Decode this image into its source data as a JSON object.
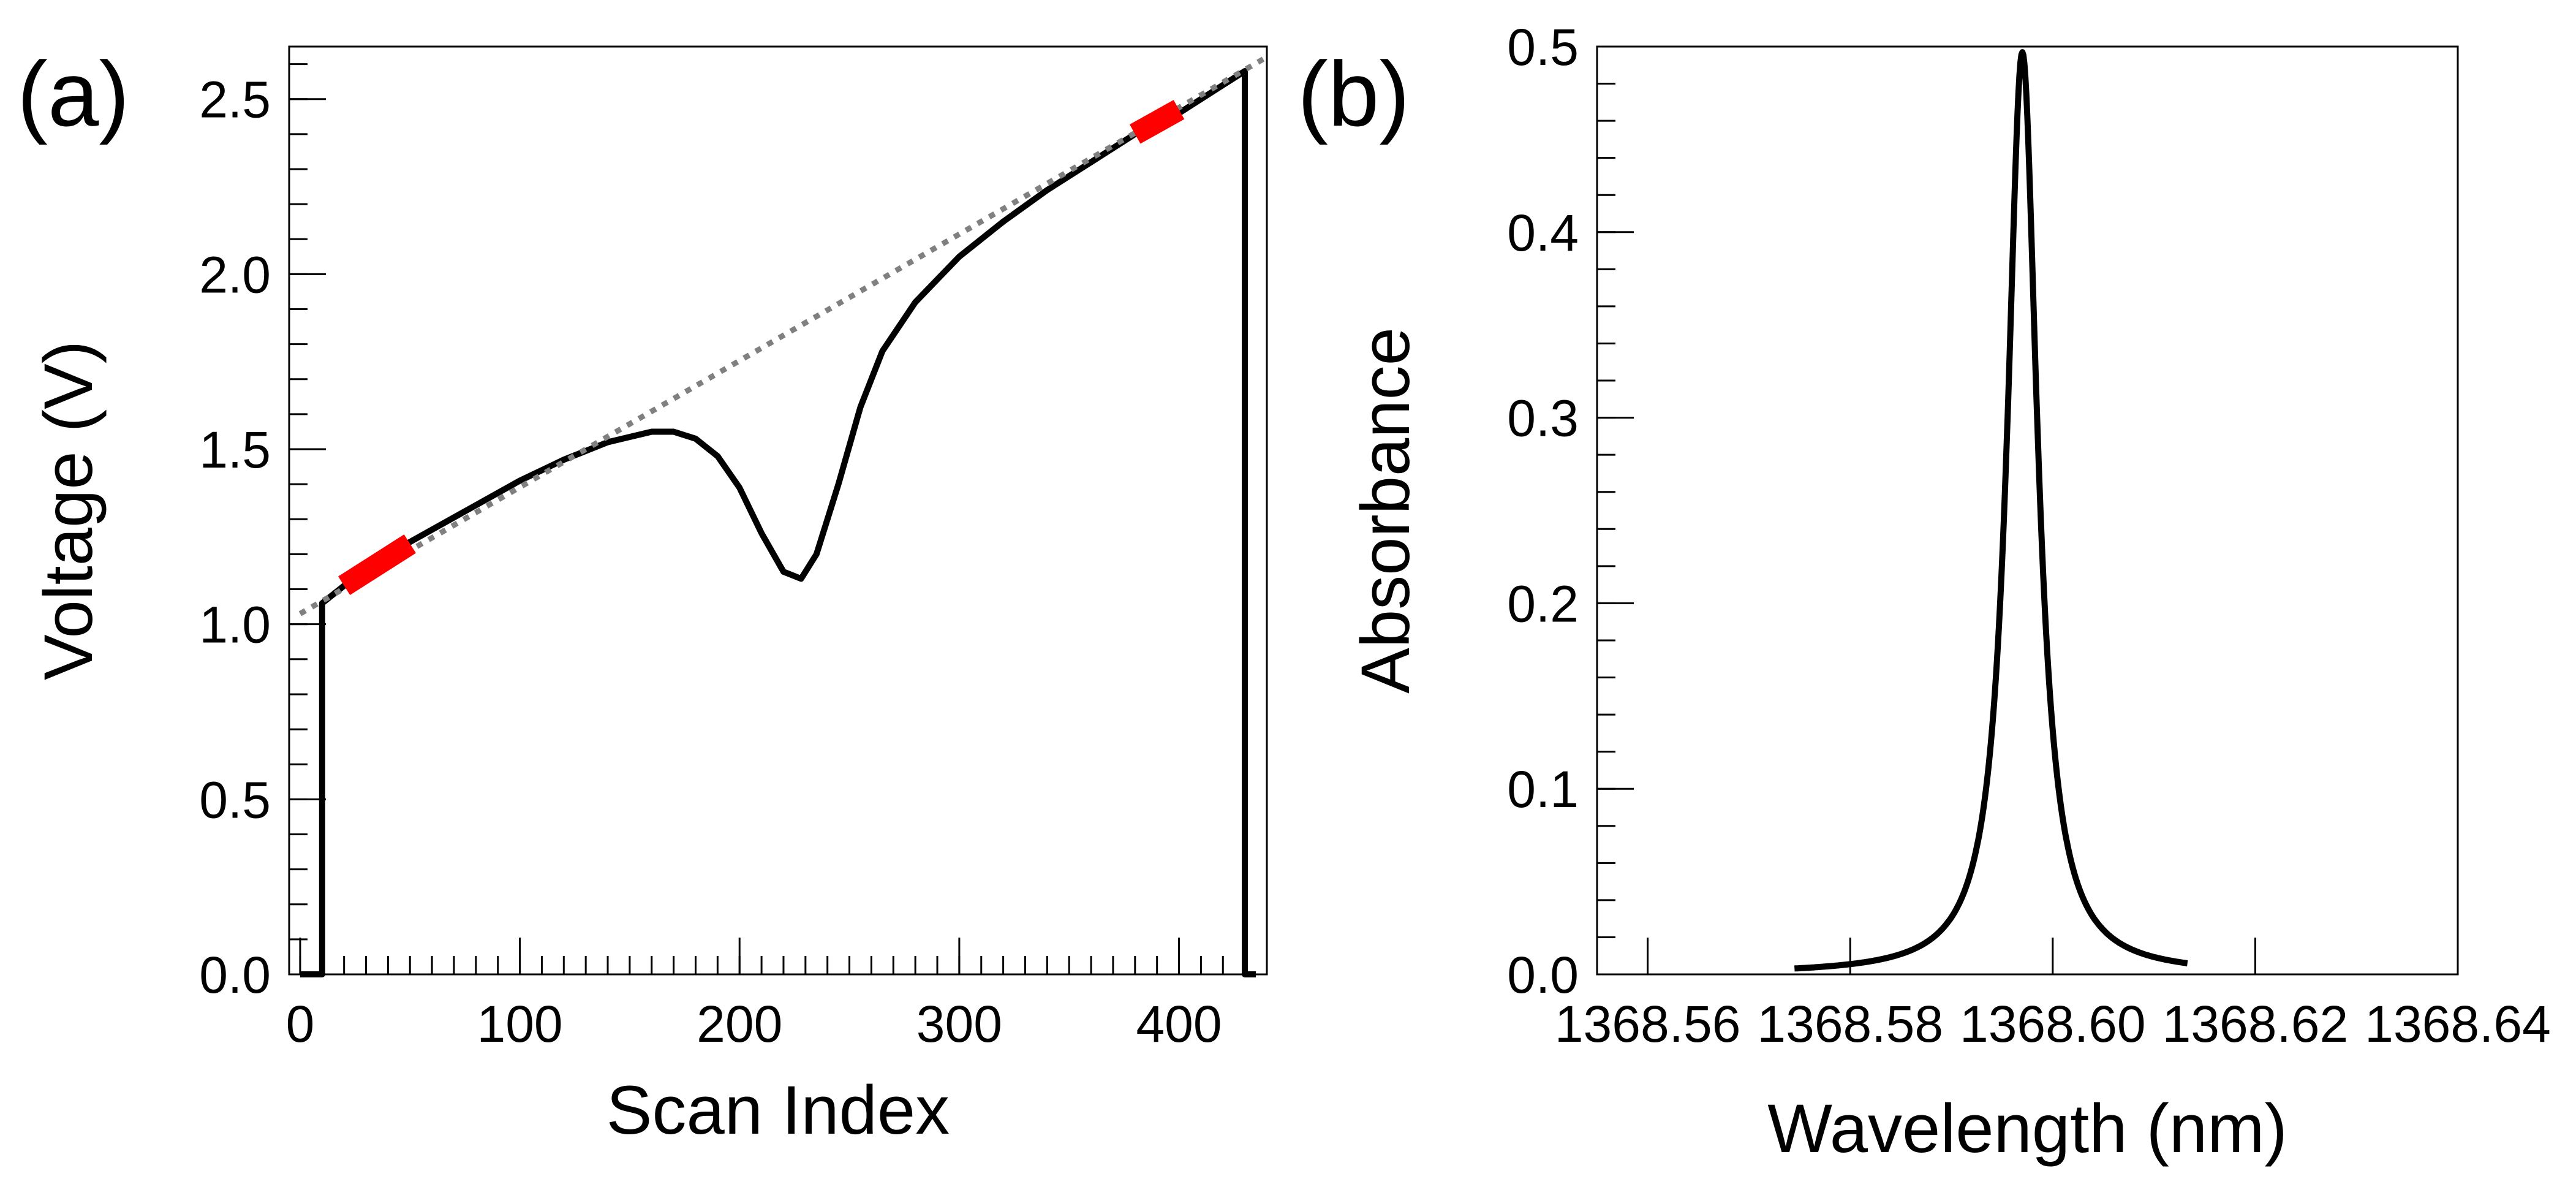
{
  "chart_data": [
    {
      "panel_label": "(a)",
      "type": "line",
      "xlabel": "Scan Index",
      "ylabel": "Voltage (V)",
      "xlim": [
        -5,
        440
      ],
      "ylim": [
        0,
        2.65
      ],
      "xticks": [
        0,
        100,
        200,
        300,
        400
      ],
      "xtick_labels": [
        "0",
        "100",
        "200",
        "300",
        "400"
      ],
      "yticks": [
        0.0,
        0.5,
        1.0,
        1.5,
        2.0,
        2.5
      ],
      "ytick_labels": [
        "0.0",
        "0.5",
        "1.0",
        "1.5",
        "2.0",
        "2.5"
      ],
      "grid": false,
      "series": [
        {
          "style": "solid",
          "color": "#000000",
          "x": [
            0,
            10,
            10,
            20,
            40,
            60,
            80,
            100,
            120,
            140,
            160,
            170,
            180,
            190,
            200,
            210,
            220,
            228,
            235,
            245,
            255,
            265,
            280,
            300,
            320,
            340,
            360,
            380,
            400,
            420,
            430,
            430,
            435
          ],
          "y": [
            0.0,
            0.0,
            1.06,
            1.11,
            1.2,
            1.27,
            1.34,
            1.41,
            1.47,
            1.52,
            1.55,
            1.55,
            1.53,
            1.48,
            1.39,
            1.26,
            1.15,
            1.13,
            1.2,
            1.4,
            1.62,
            1.78,
            1.92,
            2.05,
            2.15,
            2.24,
            2.32,
            2.4,
            2.46,
            2.54,
            2.58,
            0.0,
            0.0
          ]
        },
        {
          "style": "dotted",
          "color": "#808080",
          "x": [
            0,
            440
          ],
          "y": [
            1.03,
            2.62
          ]
        },
        {
          "style": "thick",
          "color": "#ff0000",
          "x": [
            20,
            50
          ],
          "y": [
            1.11,
            1.23
          ]
        },
        {
          "style": "thick",
          "color": "#ff0000",
          "x": [
            380,
            400
          ],
          "y": [
            2.4,
            2.47
          ]
        }
      ]
    },
    {
      "panel_label": "(b)",
      "type": "line",
      "xlabel": "Wavelength (nm)",
      "ylabel": "Absorbance",
      "xlim": [
        1368.555,
        1368.64
      ],
      "ylim": [
        0,
        0.5
      ],
      "xticks": [
        1368.56,
        1368.58,
        1368.6,
        1368.62,
        1368.64
      ],
      "xtick_labels": [
        "1368.56",
        "1368.58",
        "1368.60",
        "1368.62",
        "1368.64"
      ],
      "yticks": [
        0.0,
        0.1,
        0.2,
        0.3,
        0.4,
        0.5
      ],
      "ytick_labels": [
        "0.0",
        "0.1",
        "0.2",
        "0.3",
        "0.4",
        "0.5"
      ],
      "grid": false,
      "series": [
        {
          "style": "solid",
          "color": "#000000",
          "peak_center": 1368.597,
          "peak_height": 0.497,
          "peak_hwhm": 0.0018,
          "x_start": 1368.5745,
          "x_end": 1368.6133
        }
      ]
    }
  ]
}
